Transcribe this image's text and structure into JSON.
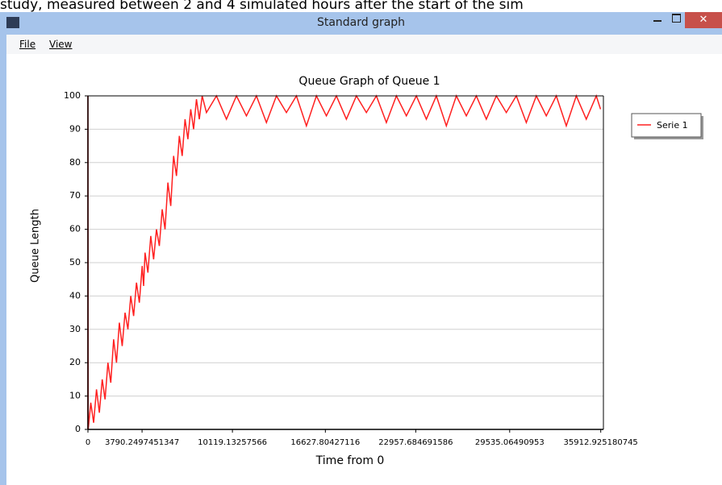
{
  "background_text": "study, measured between 2 and 4 simulated hours after the start of the sim",
  "window": {
    "title": "Standard graph",
    "menu": [
      "File",
      "View"
    ]
  },
  "chart_data": {
    "type": "line",
    "title": "Queue Graph of Queue 1",
    "x_label": "Time from 0",
    "y_label": "Queue Length",
    "xlim": [
      0,
      36100
    ],
    "ylim": [
      0,
      100
    ],
    "xticks": [
      0,
      3790.2497451347,
      10119.13257566,
      16627.80427116,
      22957.684691586,
      29535.06490953,
      35912.925180745
    ],
    "yticks": [
      0,
      10,
      20,
      30,
      40,
      50,
      60,
      70,
      80,
      90,
      100
    ],
    "grid": true,
    "legend": "right",
    "x": [
      0,
      0,
      20,
      200,
      400,
      600,
      800,
      1000,
      1200,
      1400,
      1600,
      1800,
      2000,
      2200,
      2400,
      2600,
      2800,
      3000,
      3200,
      3400,
      3600,
      3800,
      3900,
      4000,
      4200,
      4400,
      4600,
      4800,
      5000,
      5200,
      5400,
      5600,
      5800,
      6000,
      6200,
      6400,
      6600,
      6800,
      7000,
      7200,
      7400,
      7600,
      7800,
      8000,
      8300,
      9000,
      9700,
      10400,
      11100,
      11800,
      12500,
      13200,
      13900,
      14600,
      15300,
      16000,
      16700,
      17400,
      18100,
      18800,
      19500,
      20200,
      20900,
      21600,
      22300,
      23000,
      23700,
      24400,
      25100,
      25800,
      26500,
      27200,
      27900,
      28600,
      29300,
      30000,
      30700,
      31400,
      32100,
      32800,
      33500,
      34200,
      34900,
      35600,
      35900
    ],
    "series": [
      {
        "name": "Serie 1",
        "color": "#ff2020",
        "values": [
          0,
          100,
          0,
          8,
          2,
          12,
          5,
          15,
          9,
          20,
          14,
          27,
          20,
          32,
          25,
          35,
          30,
          40,
          34,
          44,
          38,
          49,
          43,
          53,
          47,
          58,
          51,
          60,
          55,
          66,
          60,
          74,
          67,
          82,
          76,
          88,
          82,
          93,
          87,
          96,
          90,
          99,
          93,
          100,
          95,
          100,
          93,
          100,
          94,
          100,
          92,
          100,
          95,
          100,
          91,
          100,
          94,
          100,
          93,
          100,
          95,
          100,
          92,
          100,
          94,
          100,
          93,
          100,
          91,
          100,
          94,
          100,
          93,
          100,
          95,
          100,
          92,
          100,
          94,
          100,
          91,
          100,
          93,
          100,
          96
        ]
      }
    ]
  }
}
